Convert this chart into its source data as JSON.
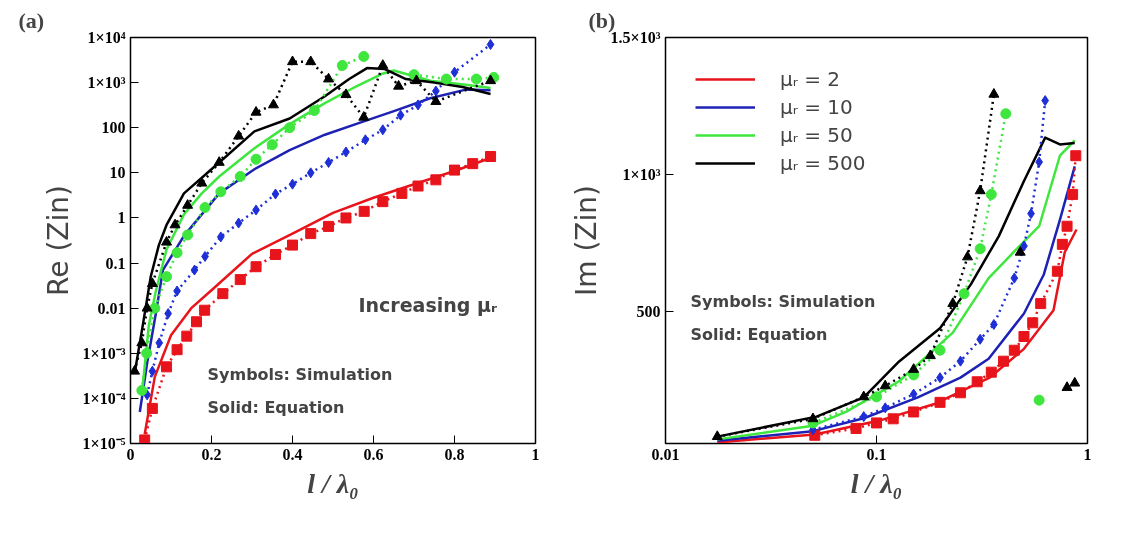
{
  "chart_data": [
    {
      "type": "line",
      "title": "(a)",
      "xlabel": "l / λ₀",
      "ylabel": "Re (Zin)",
      "log": "y",
      "grid": false,
      "legend": false,
      "xlim": [
        0,
        1
      ],
      "ylim": [
        1e-05,
        10000
      ],
      "xticks": [
        0,
        0.2,
        0.4,
        0.6,
        0.8,
        1
      ],
      "yticks": [
        {
          "value": 1e-05,
          "label": "1×10⁻⁵"
        },
        {
          "value": 0.0001,
          "label": "1×10⁻⁴"
        },
        {
          "value": 0.001,
          "label": "1×10⁻³"
        },
        0.01,
        0.1,
        1,
        10,
        100,
        {
          "value": 1000,
          "label": "1×10³"
        },
        {
          "value": 10000,
          "label": "1×10⁴"
        }
      ],
      "annotations": [
        "Increasing μᵣ",
        "Symbols: Simulation",
        "Solid: Equation"
      ],
      "series": [
        {
          "color": "#e8141b",
          "line_style": "solid",
          "marker": "none",
          "x": [
            0.035,
            0.06,
            0.1,
            0.15,
            0.2,
            0.3,
            0.4,
            0.5,
            0.6,
            0.7,
            0.8,
            0.88
          ],
          "values": [
            1.6e-05,
            0.0003,
            0.0025,
            0.01,
            0.025,
            0.16,
            0.45,
            1.3,
            2.8,
            5.6,
            11,
            20
          ]
        },
        {
          "color": "#1e22b4",
          "line_style": "solid",
          "marker": "none",
          "x": [
            0.023,
            0.041,
            0.063,
            0.08,
            0.132,
            0.219,
            0.306,
            0.393,
            0.48,
            0.567,
            0.654,
            0.74,
            0.828,
            0.889
          ],
          "values": [
            5e-05,
            0.0006,
            0.008,
            0.07,
            0.4,
            3.5,
            12,
            32,
            70,
            130,
            240,
            450,
            700,
            680
          ]
        },
        {
          "color": "#3ee63e",
          "line_style": "solid",
          "marker": "none",
          "x": [
            0.028,
            0.045,
            0.063,
            0.089,
            0.132,
            0.176,
            0.219,
            0.306,
            0.393,
            0.48,
            0.55,
            0.62,
            0.65,
            0.74,
            0.828,
            0.889
          ],
          "values": [
            0.00012,
            0.004,
            0.025,
            0.2,
            1.2,
            3.5,
            8.3,
            35,
            120,
            350,
            760,
            1550,
            1850,
            1100,
            900,
            760
          ]
        },
        {
          "color": "#000000",
          "line_style": "solid",
          "marker": "none",
          "x": [
            0.01,
            0.03,
            0.05,
            0.07,
            0.089,
            0.132,
            0.219,
            0.306,
            0.393,
            0.48,
            0.54,
            0.584,
            0.628,
            0.68,
            0.75,
            0.82,
            0.889
          ],
          "values": [
            0.00035,
            0.004,
            0.05,
            0.25,
            0.7,
            3.5,
            17,
            83,
            160,
            500,
            1200,
            2100,
            2000,
            1200,
            1000,
            800,
            560
          ]
        },
        {
          "color": "#e8141b",
          "line_style": "dotted",
          "marker": "square",
          "x": [
            0.035,
            0.054,
            0.089,
            0.115,
            0.139,
            0.163,
            0.183,
            0.228,
            0.271,
            0.31,
            0.358,
            0.4,
            0.445,
            0.489,
            0.532,
            0.577,
            0.623,
            0.67,
            0.71,
            0.754,
            0.8,
            0.845,
            0.889
          ],
          "values": [
            1.2e-05,
            6e-05,
            0.0005,
            0.0012,
            0.0024,
            0.005,
            0.009,
            0.021,
            0.043,
            0.083,
            0.155,
            0.25,
            0.45,
            0.65,
            1.0,
            1.4,
            2.3,
            3.5,
            5.1,
            7,
            11.5,
            16,
            23
          ]
        },
        {
          "color": "#1f2fd6",
          "line_style": "dotted",
          "marker": "diamond",
          "x": [
            0.041,
            0.054,
            0.071,
            0.093,
            0.115,
            0.158,
            0.184,
            0.223,
            0.267,
            0.31,
            0.358,
            0.4,
            0.445,
            0.489,
            0.532,
            0.58,
            0.623,
            0.667,
            0.71,
            0.754,
            0.8,
            0.889
          ],
          "values": [
            0.00012,
            0.0004,
            0.0017,
            0.0076,
            0.024,
            0.07,
            0.14,
            0.38,
            0.77,
            1.5,
            3.4,
            5.6,
            10,
            17,
            29,
            54,
            90,
            190,
            320,
            650,
            1700,
            7000
          ]
        },
        {
          "color": "#3ee63e",
          "line_style": "dotted",
          "marker": "circle",
          "x": [
            0.028,
            0.04,
            0.06,
            0.089,
            0.115,
            0.141,
            0.184,
            0.223,
            0.271,
            0.31,
            0.35,
            0.393,
            0.454,
            0.523,
            0.576,
            0.62,
            0.7,
            0.78,
            0.854,
            0.897
          ],
          "values": [
            0.00015,
            0.001,
            0.01,
            0.05,
            0.17,
            0.42,
            1.7,
            3.8,
            8.3,
            20,
            42,
            100,
            240,
            2400,
            3800,
            null,
            1500,
            1200,
            1200,
            1300
          ]
        },
        {
          "color": "#000000",
          "line_style": "dotted",
          "marker": "triangle",
          "x": [
            0.01,
            0.028,
            0.041,
            0.054,
            0.089,
            0.11,
            0.141,
            0.176,
            0.219,
            0.267,
            0.31,
            0.353,
            0.4,
            0.445,
            0.489,
            0.532,
            0.576,
            0.623,
            0.662,
            0.706,
            0.754,
            0.889
          ],
          "values": [
            0.0004,
            0.0017,
            0.01,
            0.035,
            0.29,
            0.7,
            1.9,
            5.9,
            17,
            65,
            220,
            320,
            2900,
            2900,
            1200,
            540,
            170,
            2400,
            830,
            1100,
            380,
            1100
          ]
        }
      ]
    },
    {
      "type": "line",
      "title": "(b)",
      "xlabel": "l / λ₀",
      "ylabel": "Im (Zin)",
      "log": "x",
      "grid": false,
      "legend": "top left",
      "xlim": [
        0.01,
        1
      ],
      "ylim": [
        20,
        1500
      ],
      "xticks": [
        0.01,
        0.1,
        1
      ],
      "yticks": [
        500,
        {
          "value": 1000,
          "label": "1×10³"
        },
        {
          "value": 1500,
          "label": "1.5×10³"
        }
      ],
      "annotations": [
        "Symbols: Simulation",
        "Solid: Equation"
      ],
      "series": [
        {
          "name": "μᵣ = 2",
          "color": "#e8141b",
          "line_style": "solid",
          "marker": "none",
          "x": [
            0.0176,
            0.051,
            0.106,
            0.19,
            0.342,
            0.5,
            0.69,
            0.78,
            0.887
          ],
          "values": [
            24,
            53,
            106,
            165,
            259,
            365,
            506,
            717,
            800
          ]
        },
        {
          "name": "μᵣ = 10",
          "color": "#1e22b4",
          "line_style": "solid",
          "marker": "none",
          "x": [
            0.0176,
            0.05,
            0.087,
            0.157,
            0.25,
            0.34,
            0.5,
            0.62,
            0.74,
            0.87
          ],
          "values": [
            30,
            65,
            112,
            188,
            260,
            329,
            494,
            635,
            835,
            1030
          ]
        },
        {
          "name": "μᵣ = 50",
          "color": "#3ee63e",
          "line_style": "solid",
          "marker": "none",
          "x": [
            0.0176,
            0.05,
            0.072,
            0.128,
            0.23,
            0.34,
            0.45,
            0.59,
            0.74,
            0.87
          ],
          "values": [
            35,
            85,
            136,
            247,
            424,
            623,
            720,
            812,
            1069,
            1125
          ]
        },
        {
          "name": "μᵣ = 500",
          "color": "#000000",
          "line_style": "solid",
          "marker": "none",
          "x": [
            0.0176,
            0.052,
            0.087,
            0.128,
            0.2,
            0.28,
            0.38,
            0.5,
            0.63,
            0.74,
            0.87
          ],
          "values": [
            45,
            118,
            188,
            319,
            440,
            600,
            776,
            977,
            1135,
            1110,
            1115
          ]
        },
        {
          "color": "#e8141b",
          "line_style": "dotted",
          "marker": "square",
          "x": [
            0.051,
            0.08,
            0.1,
            0.12,
            0.15,
            0.2,
            0.25,
            0.3,
            0.35,
            0.4,
            0.45,
            0.5,
            0.55,
            0.6,
            0.72,
            0.76,
            0.8,
            0.85,
            0.88
          ],
          "values": [
            50,
            75,
            95,
            110,
            135,
            170,
            205,
            245,
            280,
            320,
            360,
            410,
            460,
            530,
            648,
            746,
            812,
            928,
            1069
          ]
        },
        {
          "color": "#1f2fd6",
          "line_style": "dotted",
          "marker": "diamond",
          "x": [
            null,
            0.05,
            0.087,
            0.11,
            0.15,
            0.2,
            0.25,
            0.31,
            0.36,
            0.45,
            0.5,
            0.54,
            0.59,
            0.63
          ],
          "values": [
            null,
            70,
            118,
            150,
            200,
            260,
            320,
            400,
            454,
            623,
            740,
            858,
            1046,
            1270
          ]
        },
        {
          "color": "#3ee63e",
          "line_style": "dotted",
          "marker": "circle",
          "x": [
            null,
            0.05,
            0.1,
            0.15,
            0.2,
            0.26,
            0.31,
            0.35,
            0.41,
            null,
            0.59
          ],
          "values": [
            null,
            95,
            190,
            270,
            360,
            566,
            730,
            928,
            1222,
            null,
            178
          ]
        },
        {
          "color": "#000000",
          "line_style": "dotted",
          "marker": "triangle",
          "x": [
            0.0176,
            0.05,
            0.087,
            0.11,
            0.15,
            0.18,
            0.23,
            0.27,
            0.31,
            0.36,
            null,
            0.48,
            null,
            0.8,
            0.87
          ],
          "values": [
            45,
            110,
            190,
            230,
            290,
            340,
            530,
            700,
            941,
            1293,
            null,
            717,
            null,
            224,
            240
          ]
        }
      ]
    }
  ]
}
